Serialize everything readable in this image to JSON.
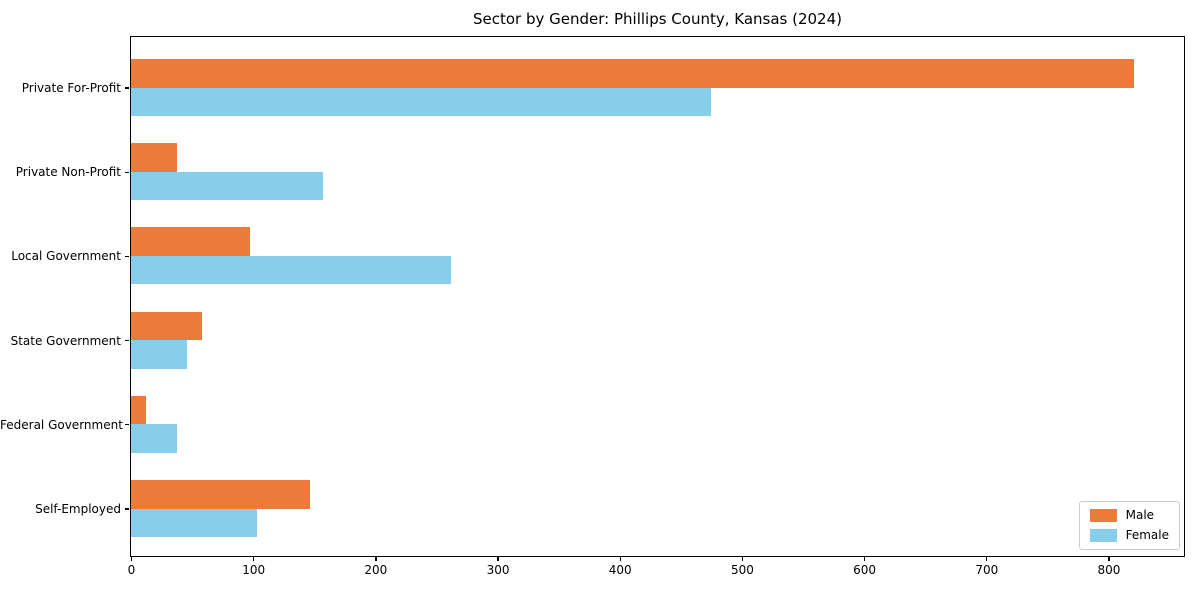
{
  "chart_data": {
    "type": "bar",
    "orientation": "horizontal",
    "title": "Sector by Gender: Phillips County, Kansas (2024)",
    "categories": [
      "Private For-Profit",
      "Private Non-Profit",
      "Local Government",
      "State Government",
      "Federal Government",
      "Self-Employed"
    ],
    "series": [
      {
        "name": "Male",
        "color": "#ea7b3b",
        "values": [
          820,
          38,
          97,
          58,
          12,
          146
        ]
      },
      {
        "name": "Female",
        "color": "#87ceeb",
        "values": [
          474,
          157,
          262,
          46,
          38,
          103
        ]
      }
    ],
    "xlabel": "",
    "ylabel": "",
    "xlim": [
      0,
      861
    ],
    "x_ticks": [
      0,
      100,
      200,
      300,
      400,
      500,
      600,
      700,
      800
    ],
    "grid": false,
    "legend_position": "lower right",
    "background_color": "#ffffff",
    "axis_color": "#000000",
    "legend_border_color": "#cccccc"
  }
}
